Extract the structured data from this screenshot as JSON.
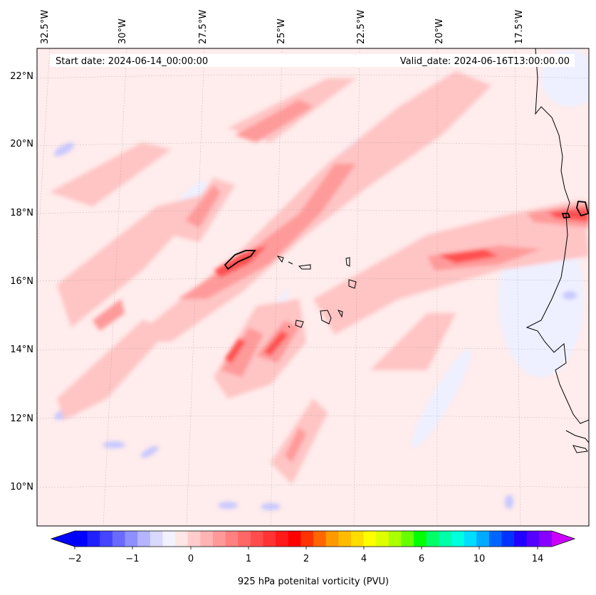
{
  "map": {
    "start_date_label": "Start date: 2024-06-14_00:00:00",
    "valid_date_label": "Valid_date: 2024-06-16T13:00:00.00",
    "lon_labels": [
      "32.5°W",
      "30°W",
      "27.5°W",
      "25°W",
      "22.5°W",
      "20°W",
      "17.5°W"
    ],
    "lat_labels": [
      "22°N",
      "20°N",
      "18°N",
      "16°N",
      "14°N",
      "12°N",
      "10°N"
    ],
    "lon_values": [
      -32.5,
      -30,
      -27.5,
      -25,
      -22.5,
      -20,
      -17.5
    ],
    "lat_values": [
      22,
      20,
      18,
      16,
      14,
      12,
      10
    ],
    "extent": {
      "lon_min": -32.5,
      "lon_max": -15.3,
      "lat_min": 8.9,
      "lat_max": 22.8
    },
    "field": "925 hPa potential vorticity",
    "gridlines": true
  },
  "colorbar": {
    "label": "925 hPa potenital vorticity (PVU)",
    "tick_labels": [
      "−2",
      "−1",
      "0",
      "1",
      "2",
      "4",
      "6",
      "10",
      "14"
    ],
    "colors": [
      "#0000ff",
      "#2020ff",
      "#4545ff",
      "#6a6aff",
      "#8f8fff",
      "#b4b4ff",
      "#d9d9ff",
      "#f2f2ff",
      "#ffe6e6",
      "#ffcccc",
      "#ffb3b3",
      "#ff9999",
      "#ff8080",
      "#ff6666",
      "#ff4d4d",
      "#ff3333",
      "#ff1a1a",
      "#ff0000",
      "#ff3300",
      "#ff6600",
      "#ff9900",
      "#ffbb00",
      "#ffdd00",
      "#ffff00",
      "#ddff00",
      "#aaff00",
      "#66ff00",
      "#00ff00",
      "#00ff66",
      "#00ffaa",
      "#00ffdd",
      "#00ddff",
      "#00aaff",
      "#0066ff",
      "#0033ff",
      "#2200ff",
      "#5500ff",
      "#8800ff"
    ],
    "extend_left_color": "#0000ff",
    "extend_right_color": "#cc00ff"
  }
}
